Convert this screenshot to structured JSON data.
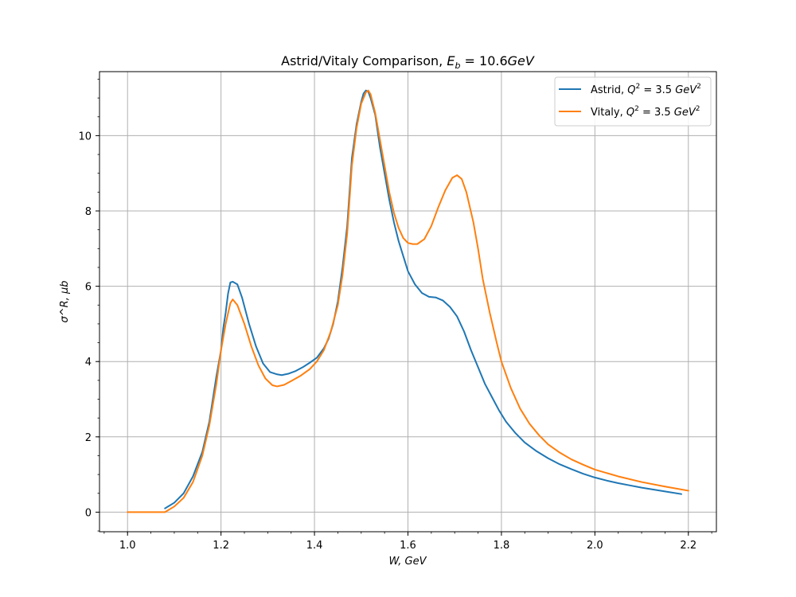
{
  "chart_data": {
    "type": "line",
    "title": "Astrid/Vitaly Comparison, E_b = 10.6GeV",
    "title_parts": {
      "prefix": "Astrid/Vitaly Comparison, ",
      "E": "E",
      "sub_b": "b",
      "equals_value": " = 10.6",
      "unit": "GeV"
    },
    "xlabel": "W, GeV",
    "ylabel": "σ^R, μb",
    "xlim": [
      0.94,
      2.26
    ],
    "ylim": [
      -0.52,
      11.7
    ],
    "x_ticks": [
      "1.0",
      "1.2",
      "1.4",
      "1.6",
      "1.8",
      "2.0",
      "2.2"
    ],
    "x_tick_values": [
      1.0,
      1.2,
      1.4,
      1.6,
      1.8,
      2.0,
      2.2
    ],
    "y_ticks": [
      "0",
      "2",
      "4",
      "6",
      "8",
      "10"
    ],
    "y_tick_values": [
      0,
      2,
      4,
      6,
      8,
      10
    ],
    "grid": true,
    "legend_placement": "top-right",
    "series": [
      {
        "name": "Astrid, Q^2 = 3.5 GeV^2",
        "legend_parts": {
          "prefix": "Astrid, ",
          "Q": "Q",
          "sup": "2",
          "middle": " = 3.5 ",
          "unit": "GeV",
          "unit_sup": "2"
        },
        "color": "#1f77b4",
        "points": [
          [
            1.08,
            0.1
          ],
          [
            1.1,
            0.25
          ],
          [
            1.12,
            0.5
          ],
          [
            1.14,
            0.95
          ],
          [
            1.16,
            1.6
          ],
          [
            1.175,
            2.4
          ],
          [
            1.19,
            3.6
          ],
          [
            1.2,
            4.3
          ],
          [
            1.205,
            4.9
          ],
          [
            1.21,
            5.3
          ],
          [
            1.215,
            5.8
          ],
          [
            1.22,
            6.1
          ],
          [
            1.225,
            6.12
          ],
          [
            1.235,
            6.05
          ],
          [
            1.245,
            5.7
          ],
          [
            1.26,
            5.0
          ],
          [
            1.275,
            4.4
          ],
          [
            1.29,
            3.95
          ],
          [
            1.305,
            3.72
          ],
          [
            1.32,
            3.66
          ],
          [
            1.33,
            3.64
          ],
          [
            1.345,
            3.68
          ],
          [
            1.36,
            3.75
          ],
          [
            1.375,
            3.85
          ],
          [
            1.39,
            3.97
          ],
          [
            1.405,
            4.1
          ],
          [
            1.42,
            4.35
          ],
          [
            1.43,
            4.6
          ],
          [
            1.44,
            5.0
          ],
          [
            1.45,
            5.6
          ],
          [
            1.46,
            6.5
          ],
          [
            1.47,
            7.6
          ],
          [
            1.48,
            9.4
          ],
          [
            1.49,
            10.3
          ],
          [
            1.5,
            10.9
          ],
          [
            1.505,
            11.12
          ],
          [
            1.51,
            11.2
          ],
          [
            1.515,
            11.17
          ],
          [
            1.52,
            11.0
          ],
          [
            1.53,
            10.55
          ],
          [
            1.54,
            9.7
          ],
          [
            1.55,
            9.0
          ],
          [
            1.56,
            8.3
          ],
          [
            1.57,
            7.7
          ],
          [
            1.58,
            7.2
          ],
          [
            1.59,
            6.8
          ],
          [
            1.6,
            6.4
          ],
          [
            1.615,
            6.05
          ],
          [
            1.63,
            5.82
          ],
          [
            1.645,
            5.72
          ],
          [
            1.66,
            5.7
          ],
          [
            1.675,
            5.62
          ],
          [
            1.69,
            5.45
          ],
          [
            1.705,
            5.2
          ],
          [
            1.72,
            4.8
          ],
          [
            1.735,
            4.3
          ],
          [
            1.75,
            3.85
          ],
          [
            1.765,
            3.4
          ],
          [
            1.78,
            3.05
          ],
          [
            1.795,
            2.7
          ],
          [
            1.81,
            2.4
          ],
          [
            1.83,
            2.1
          ],
          [
            1.85,
            1.85
          ],
          [
            1.875,
            1.62
          ],
          [
            1.9,
            1.43
          ],
          [
            1.925,
            1.27
          ],
          [
            1.95,
            1.14
          ],
          [
            1.975,
            1.02
          ],
          [
            2.0,
            0.92
          ],
          [
            2.025,
            0.84
          ],
          [
            2.05,
            0.77
          ],
          [
            2.075,
            0.71
          ],
          [
            2.1,
            0.65
          ],
          [
            2.125,
            0.6
          ],
          [
            2.15,
            0.55
          ],
          [
            2.185,
            0.48
          ]
        ]
      },
      {
        "name": "Vitaly, Q^2 = 3.5 GeV^2",
        "legend_parts": {
          "prefix": "Vitaly, ",
          "Q": "Q",
          "sup": "2",
          "middle": " = 3.5 ",
          "unit": "GeV",
          "unit_sup": "2"
        },
        "color": "#ff7f0e",
        "points": [
          [
            1.0,
            0.0
          ],
          [
            1.05,
            0.0
          ],
          [
            1.08,
            0.0
          ],
          [
            1.1,
            0.15
          ],
          [
            1.12,
            0.38
          ],
          [
            1.14,
            0.8
          ],
          [
            1.16,
            1.5
          ],
          [
            1.175,
            2.3
          ],
          [
            1.19,
            3.4
          ],
          [
            1.2,
            4.3
          ],
          [
            1.21,
            5.0
          ],
          [
            1.22,
            5.55
          ],
          [
            1.225,
            5.65
          ],
          [
            1.235,
            5.5
          ],
          [
            1.25,
            5.0
          ],
          [
            1.265,
            4.4
          ],
          [
            1.28,
            3.9
          ],
          [
            1.295,
            3.55
          ],
          [
            1.31,
            3.37
          ],
          [
            1.32,
            3.34
          ],
          [
            1.335,
            3.38
          ],
          [
            1.35,
            3.48
          ],
          [
            1.37,
            3.62
          ],
          [
            1.39,
            3.8
          ],
          [
            1.405,
            4.0
          ],
          [
            1.42,
            4.3
          ],
          [
            1.435,
            4.8
          ],
          [
            1.45,
            5.5
          ],
          [
            1.46,
            6.3
          ],
          [
            1.47,
            7.4
          ],
          [
            1.48,
            9.2
          ],
          [
            1.49,
            10.2
          ],
          [
            1.5,
            10.85
          ],
          [
            1.51,
            11.15
          ],
          [
            1.515,
            11.2
          ],
          [
            1.52,
            11.1
          ],
          [
            1.53,
            10.6
          ],
          [
            1.54,
            9.9
          ],
          [
            1.55,
            9.2
          ],
          [
            1.56,
            8.5
          ],
          [
            1.57,
            7.95
          ],
          [
            1.58,
            7.55
          ],
          [
            1.59,
            7.28
          ],
          [
            1.6,
            7.15
          ],
          [
            1.61,
            7.12
          ],
          [
            1.62,
            7.12
          ],
          [
            1.635,
            7.25
          ],
          [
            1.65,
            7.6
          ],
          [
            1.665,
            8.1
          ],
          [
            1.68,
            8.55
          ],
          [
            1.695,
            8.88
          ],
          [
            1.705,
            8.95
          ],
          [
            1.715,
            8.85
          ],
          [
            1.725,
            8.5
          ],
          [
            1.74,
            7.7
          ],
          [
            1.75,
            7.0
          ],
          [
            1.76,
            6.2
          ],
          [
            1.775,
            5.3
          ],
          [
            1.79,
            4.5
          ],
          [
            1.8,
            4.0
          ],
          [
            1.82,
            3.3
          ],
          [
            1.84,
            2.75
          ],
          [
            1.86,
            2.35
          ],
          [
            1.88,
            2.05
          ],
          [
            1.9,
            1.8
          ],
          [
            1.925,
            1.58
          ],
          [
            1.95,
            1.4
          ],
          [
            1.975,
            1.26
          ],
          [
            2.0,
            1.13
          ],
          [
            2.05,
            0.95
          ],
          [
            2.1,
            0.8
          ],
          [
            2.15,
            0.68
          ],
          [
            2.2,
            0.57
          ]
        ]
      }
    ]
  }
}
